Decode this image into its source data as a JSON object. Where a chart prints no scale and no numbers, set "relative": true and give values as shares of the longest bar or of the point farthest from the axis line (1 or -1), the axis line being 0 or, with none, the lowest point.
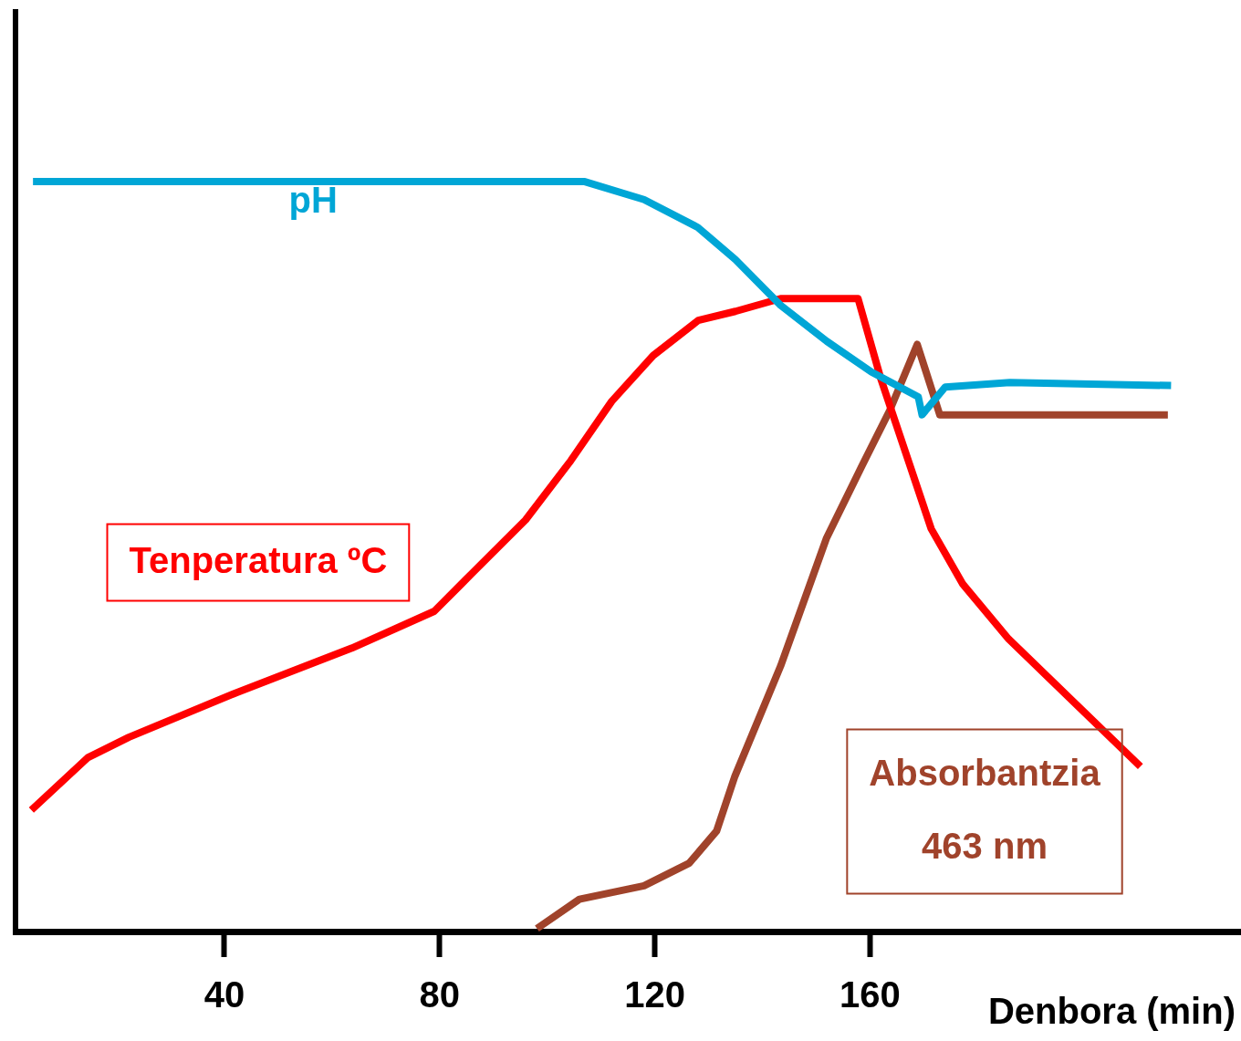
{
  "chart_data": {
    "type": "line",
    "relative": true,
    "xlabel": "Denbora (min)",
    "xlim": [
      2,
      229
    ],
    "xticks": [
      40,
      80,
      120,
      160
    ],
    "grid": false,
    "legend": false,
    "marker": "none",
    "line_style": "solid",
    "series": [
      {
        "name": "pH",
        "color": "#00a6d6",
        "x": [
          4.4,
          107,
          118,
          128,
          135,
          143.4,
          152,
          160.3,
          169,
          169.7,
          174,
          186,
          216
        ],
        "values": [
          1.0,
          1.0,
          0.976,
          0.939,
          0.896,
          0.835,
          0.787,
          0.746,
          0.713,
          0.689,
          0.726,
          0.732,
          0.728
        ]
      },
      {
        "name": "Tenperatura ºC",
        "color": "#ff0000",
        "x": [
          4.1,
          14.6,
          22.2,
          41.7,
          63.7,
          79,
          85.8,
          96,
          104.4,
          112,
          119.7,
          128.1,
          135,
          143.4,
          157.8,
          162,
          171.4,
          177.3,
          185.8,
          210.3
        ],
        "values": [
          0.162,
          0.232,
          0.259,
          0.317,
          0.378,
          0.427,
          0.476,
          0.549,
          0.628,
          0.707,
          0.768,
          0.815,
          0.827,
          0.844,
          0.844,
          0.738,
          0.537,
          0.463,
          0.39,
          0.22
        ]
      },
      {
        "name": "Absorbantzia 463 nm",
        "color": "#a0432b",
        "x": [
          98.1,
          106,
          118,
          126.4,
          131.5,
          134.9,
          143.4,
          151.9,
          158.6,
          163.7,
          168.8,
          173,
          215.4
        ],
        "values": [
          0.004,
          0.043,
          0.061,
          0.091,
          0.134,
          0.207,
          0.354,
          0.524,
          0.622,
          0.695,
          0.783,
          0.689,
          0.689
        ]
      }
    ]
  }
}
